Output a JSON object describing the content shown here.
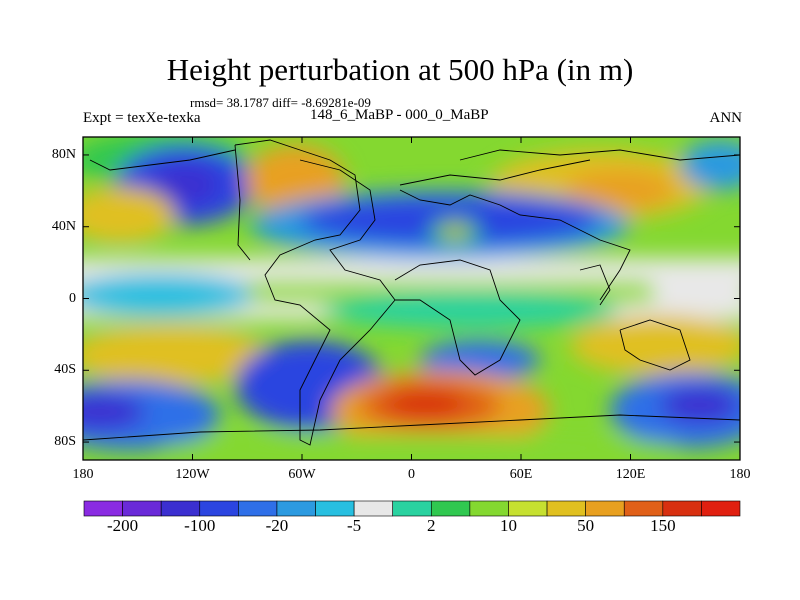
{
  "title": "Height perturbation at 500 hPa (in m)",
  "stats": "rmsd= 38.1787 diff= -8.69281e-09",
  "left_label": "Expt = texXe-texka",
  "center_label": "148_6_MaBP - 000_0_MaBP",
  "right_label": "ANN",
  "y_ticks": [
    {
      "label": "80N",
      "lat": 80
    },
    {
      "label": "40N",
      "lat": 40
    },
    {
      "label": "0",
      "lat": 0
    },
    {
      "label": "40S",
      "lat": -40
    },
    {
      "label": "80S",
      "lat": -80
    }
  ],
  "x_ticks": [
    {
      "label": "180",
      "lon": -180
    },
    {
      "label": "120W",
      "lon": -120
    },
    {
      "label": "60W",
      "lon": -60
    },
    {
      "label": "0",
      "lon": 0
    },
    {
      "label": "60E",
      "lon": 60
    },
    {
      "label": "120E",
      "lon": 120
    },
    {
      "label": "180",
      "lon": 180
    }
  ],
  "colorbar": {
    "colors": [
      "#8a2be2",
      "#6a2ad8",
      "#3b2fd0",
      "#2b45e0",
      "#2f6fe8",
      "#2c9ae0",
      "#27bfe0",
      "#e8e8e8",
      "#2ad2a0",
      "#30c850",
      "#84d830",
      "#c6e030",
      "#e0c020",
      "#e8a020",
      "#e06018",
      "#d83010",
      "#e02010"
    ],
    "labels": [
      {
        "text": "-200",
        "index": 1
      },
      {
        "text": "-100",
        "index": 3
      },
      {
        "text": "-20",
        "index": 5
      },
      {
        "text": "-5",
        "index": 7
      },
      {
        "text": "2",
        "index": 9
      },
      {
        "text": "10",
        "index": 11
      },
      {
        "text": "50",
        "index": 13
      },
      {
        "text": "150",
        "index": 15
      }
    ]
  }
}
